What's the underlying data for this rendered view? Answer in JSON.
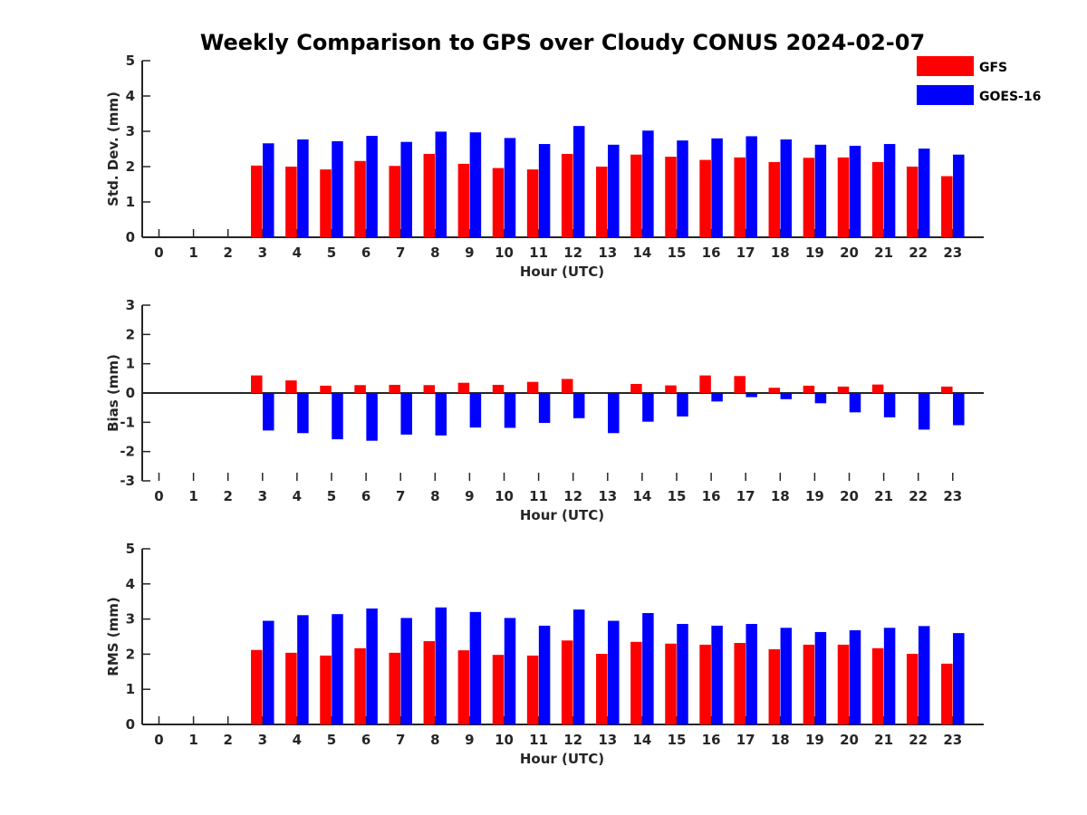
{
  "title": "Weekly Comparison to GPS over Cloudy CONUS 2024-02-07",
  "legend": {
    "position": "top-right",
    "entries": [
      {
        "name": "GFS",
        "color": "#ff0000"
      },
      {
        "name": "GOES-16",
        "color": "#0000ff"
      }
    ]
  },
  "chart_data": [
    {
      "type": "bar",
      "xlabel": "Hour (UTC)",
      "ylabel": "Std. Dev. (mm)",
      "ylim": [
        0,
        5
      ],
      "yticks": [
        0,
        1,
        2,
        3,
        4,
        5
      ],
      "categories": [
        "0",
        "1",
        "2",
        "3",
        "4",
        "5",
        "6",
        "7",
        "8",
        "9",
        "10",
        "11",
        "12",
        "13",
        "14",
        "15",
        "16",
        "17",
        "18",
        "19",
        "20",
        "21",
        "22",
        "23"
      ],
      "series": [
        {
          "name": "GFS",
          "color": "#ff0000",
          "values": [
            0,
            0,
            0,
            2.03,
            2.0,
            1.92,
            2.16,
            2.02,
            2.36,
            2.08,
            1.96,
            1.92,
            2.36,
            2.0,
            2.34,
            2.28,
            2.19,
            2.26,
            2.13,
            2.25,
            2.26,
            2.13,
            2.0,
            1.73
          ]
        },
        {
          "name": "GOES-16",
          "color": "#0000ff",
          "values": [
            0,
            0,
            0,
            2.66,
            2.77,
            2.72,
            2.87,
            2.7,
            2.99,
            2.97,
            2.81,
            2.64,
            3.15,
            2.62,
            3.02,
            2.74,
            2.8,
            2.86,
            2.77,
            2.62,
            2.59,
            2.64,
            2.51,
            2.34
          ]
        }
      ]
    },
    {
      "type": "bar",
      "xlabel": "Hour (UTC)",
      "ylabel": "Bias (mm)",
      "ylim": [
        -3,
        3
      ],
      "yticks": [
        -3,
        -2,
        -1,
        0,
        1,
        2,
        3
      ],
      "categories": [
        "0",
        "1",
        "2",
        "3",
        "4",
        "5",
        "6",
        "7",
        "8",
        "9",
        "10",
        "11",
        "12",
        "13",
        "14",
        "15",
        "16",
        "17",
        "18",
        "19",
        "20",
        "21",
        "22",
        "23"
      ],
      "series": [
        {
          "name": "GFS",
          "color": "#ff0000",
          "values": [
            0,
            0,
            0,
            0.6,
            0.43,
            0.25,
            0.27,
            0.28,
            0.27,
            0.35,
            0.28,
            0.38,
            0.48,
            0.0,
            0.31,
            0.26,
            0.6,
            0.58,
            0.18,
            0.25,
            0.22,
            0.29,
            0.0,
            0.22
          ]
        },
        {
          "name": "GOES-16",
          "color": "#0000ff",
          "values": [
            0,
            0,
            0,
            -1.28,
            -1.37,
            -1.58,
            -1.63,
            -1.42,
            -1.45,
            -1.18,
            -1.19,
            -1.02,
            -0.86,
            -1.37,
            -0.98,
            -0.8,
            -0.29,
            -0.14,
            -0.21,
            -0.35,
            -0.66,
            -0.83,
            -1.25,
            -1.1
          ]
        }
      ]
    },
    {
      "type": "bar",
      "xlabel": "Hour (UTC)",
      "ylabel": "RMS (mm)",
      "ylim": [
        0,
        5
      ],
      "yticks": [
        0,
        1,
        2,
        3,
        4,
        5
      ],
      "categories": [
        "0",
        "1",
        "2",
        "3",
        "4",
        "5",
        "6",
        "7",
        "8",
        "9",
        "10",
        "11",
        "12",
        "13",
        "14",
        "15",
        "16",
        "17",
        "18",
        "19",
        "20",
        "21",
        "22",
        "23"
      ],
      "series": [
        {
          "name": "GFS",
          "color": "#ff0000",
          "values": [
            0,
            0,
            0,
            2.12,
            2.04,
            1.96,
            2.17,
            2.04,
            2.37,
            2.11,
            1.98,
            1.96,
            2.39,
            2.01,
            2.35,
            2.3,
            2.27,
            2.32,
            2.14,
            2.27,
            2.27,
            2.17,
            2.01,
            1.73
          ]
        },
        {
          "name": "GOES-16",
          "color": "#0000ff",
          "values": [
            0,
            0,
            0,
            2.95,
            3.11,
            3.14,
            3.3,
            3.03,
            3.33,
            3.2,
            3.03,
            2.81,
            3.27,
            2.95,
            3.17,
            2.86,
            2.81,
            2.86,
            2.75,
            2.63,
            2.68,
            2.75,
            2.8,
            2.6
          ]
        }
      ]
    }
  ]
}
